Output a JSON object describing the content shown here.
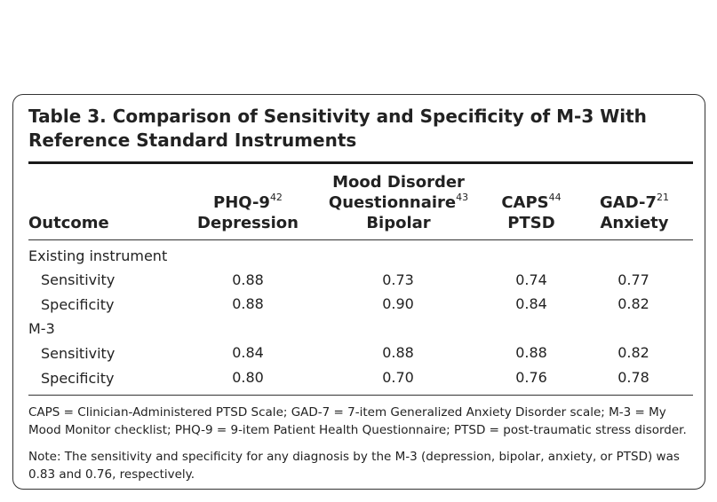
{
  "title": "Table 3. Comparison of Sensitivity and Specificity of M-3 With Reference Standard Instruments",
  "headers": {
    "outcome": "Outcome",
    "col1": {
      "line1": "PHQ-9",
      "sup": "42",
      "line2": "Depression"
    },
    "col2": {
      "line1": "Mood Disorder",
      "line2": "Questionnaire",
      "sup": "43",
      "line3": "Bipolar"
    },
    "col3": {
      "line1": "CAPS",
      "sup": "44",
      "line2": "PTSD"
    },
    "col4": {
      "line1": "GAD-7",
      "sup": "21",
      "line2": "Anxiety"
    }
  },
  "sections": [
    {
      "label": "Existing instrument",
      "rows": [
        {
          "label": "Sensitivity",
          "values": [
            "0.88",
            "0.73",
            "0.74",
            "0.77"
          ]
        },
        {
          "label": "Specificity",
          "values": [
            "0.88",
            "0.90",
            "0.84",
            "0.82"
          ]
        }
      ]
    },
    {
      "label": "M-3",
      "rows": [
        {
          "label": "Sensitivity",
          "values": [
            "0.84",
            "0.88",
            "0.88",
            "0.82"
          ]
        },
        {
          "label": "Specificity",
          "values": [
            "0.80",
            "0.70",
            "0.76",
            "0.78"
          ]
        }
      ]
    }
  ],
  "footnotes": {
    "abbreviations": "CAPS = Clinician-Administered PTSD Scale; GAD-7 = 7-item Generalized Anxiety Disorder scale; M-3 = My Mood Monitor checklist; PHQ-9 = 9-item Patient Health Questionnaire; PTSD = post-traumatic stress disorder.",
    "note": "Note: The sensitivity and specificity for any diagnosis by the M-3 (depression, bipolar, anxiety, or PTSD) was 0.83 and 0.76, respectively."
  }
}
